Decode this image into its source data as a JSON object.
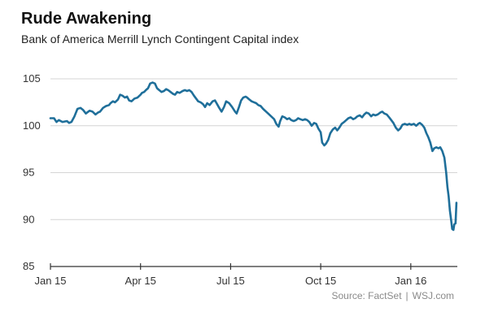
{
  "chart_data": {
    "type": "line",
    "title": "Rude Awakening",
    "subtitle": "Bank of America Merrill Lynch Contingent Capital index",
    "xlabel": "",
    "ylabel": "",
    "ylim": [
      85,
      105
    ],
    "yticks": [
      85,
      90,
      95,
      100,
      105
    ],
    "xticks": [
      {
        "label": "Jan 15",
        "month": 0
      },
      {
        "label": "Apr 15",
        "month": 3
      },
      {
        "label": "Jul 15",
        "month": 6
      },
      {
        "label": "Oct 15",
        "month": 9
      },
      {
        "label": "Jan 16",
        "month": 12
      }
    ],
    "xlim": [
      0,
      13.55
    ],
    "grid": "horizontal",
    "line_color": "#1f6f9a",
    "series": [
      {
        "name": "",
        "x": [
          0.0,
          0.12,
          0.2,
          0.28,
          0.4,
          0.55,
          0.62,
          0.7,
          0.8,
          0.9,
          1.0,
          1.08,
          1.18,
          1.3,
          1.4,
          1.5,
          1.58,
          1.65,
          1.75,
          1.85,
          1.95,
          2.0,
          2.08,
          2.15,
          2.25,
          2.32,
          2.4,
          2.48,
          2.55,
          2.62,
          2.7,
          2.8,
          2.9,
          3.0,
          3.05,
          3.12,
          3.18,
          3.25,
          3.32,
          3.4,
          3.48,
          3.55,
          3.62,
          3.7,
          3.78,
          3.85,
          3.92,
          4.0,
          4.08,
          4.15,
          4.22,
          4.3,
          4.4,
          4.48,
          4.55,
          4.62,
          4.7,
          4.78,
          4.85,
          4.92,
          5.0,
          5.08,
          5.15,
          5.22,
          5.3,
          5.4,
          5.48,
          5.55,
          5.62,
          5.7,
          5.78,
          5.85,
          5.95,
          6.05,
          6.15,
          6.2,
          6.28,
          6.35,
          6.42,
          6.5,
          6.55,
          6.62,
          6.7,
          6.78,
          6.85,
          6.92,
          7.0,
          7.08,
          7.15,
          7.25,
          7.35,
          7.45,
          7.52,
          7.6,
          7.65,
          7.72,
          7.8,
          7.88,
          7.95,
          8.02,
          8.1,
          8.18,
          8.25,
          8.32,
          8.4,
          8.48,
          8.55,
          8.62,
          8.7,
          8.78,
          8.85,
          8.92,
          9.0,
          9.05,
          9.12,
          9.18,
          9.25,
          9.32,
          9.4,
          9.48,
          9.55,
          9.62,
          9.7,
          9.78,
          9.85,
          9.92,
          10.0,
          10.08,
          10.15,
          10.22,
          10.3,
          10.38,
          10.45,
          10.52,
          10.6,
          10.68,
          10.75,
          10.82,
          10.9,
          10.98,
          11.05,
          11.12,
          11.2,
          11.28,
          11.35,
          11.42,
          11.5,
          11.58,
          11.65,
          11.72,
          11.8,
          11.88,
          11.95,
          12.02,
          12.1,
          12.18,
          12.25,
          12.3,
          12.38,
          12.45,
          12.52,
          12.58,
          12.65,
          12.72,
          12.78,
          12.85,
          12.92,
          12.98,
          13.05,
          13.12,
          13.18,
          13.22,
          13.26,
          13.3,
          13.34,
          13.38,
          13.42,
          13.45,
          13.49,
          13.52
        ],
        "y": [
          100.8,
          100.8,
          100.4,
          100.6,
          100.4,
          100.5,
          100.3,
          100.4,
          101.0,
          101.8,
          101.9,
          101.7,
          101.3,
          101.6,
          101.5,
          101.2,
          101.4,
          101.5,
          101.9,
          102.1,
          102.2,
          102.4,
          102.6,
          102.5,
          102.8,
          103.3,
          103.2,
          103.0,
          103.1,
          102.7,
          102.6,
          102.9,
          103.0,
          103.3,
          103.5,
          103.6,
          103.8,
          104.0,
          104.5,
          104.6,
          104.5,
          104.0,
          103.8,
          103.6,
          103.7,
          103.9,
          103.8,
          103.6,
          103.4,
          103.3,
          103.6,
          103.5,
          103.7,
          103.8,
          103.7,
          103.8,
          103.6,
          103.2,
          102.9,
          102.6,
          102.5,
          102.3,
          102.0,
          102.4,
          102.2,
          102.6,
          102.7,
          102.3,
          101.9,
          101.5,
          102.0,
          102.6,
          102.4,
          102.0,
          101.5,
          101.3,
          102.0,
          102.7,
          103.0,
          103.1,
          103.0,
          102.8,
          102.6,
          102.5,
          102.4,
          102.2,
          102.1,
          101.8,
          101.6,
          101.3,
          101.0,
          100.7,
          100.2,
          99.9,
          100.5,
          101.0,
          100.9,
          100.7,
          100.8,
          100.6,
          100.5,
          100.6,
          100.8,
          100.7,
          100.6,
          100.7,
          100.6,
          100.4,
          100.0,
          100.3,
          100.2,
          99.7,
          99.3,
          98.2,
          97.9,
          98.1,
          98.5,
          99.2,
          99.6,
          99.8,
          99.5,
          99.8,
          100.2,
          100.4,
          100.6,
          100.8,
          100.9,
          100.7,
          100.8,
          101.0,
          101.1,
          100.9,
          101.2,
          101.4,
          101.3,
          101.0,
          101.2,
          101.1,
          101.2,
          101.4,
          101.5,
          101.3,
          101.2,
          100.9,
          100.6,
          100.3,
          99.8,
          99.5,
          99.7,
          100.1,
          100.2,
          100.1,
          100.2,
          100.1,
          100.2,
          100.0,
          100.2,
          100.3,
          100.1,
          99.8,
          99.2,
          98.8,
          98.2,
          97.3,
          97.6,
          97.7,
          97.6,
          97.7,
          97.3,
          96.6,
          95.0,
          93.5,
          92.5,
          91.0,
          90.0,
          89.0,
          88.9,
          89.5,
          89.6,
          91.8
        ]
      }
    ]
  },
  "source": {
    "text": "Source: FactSet",
    "separator": "|",
    "brand": "WSJ.com"
  }
}
